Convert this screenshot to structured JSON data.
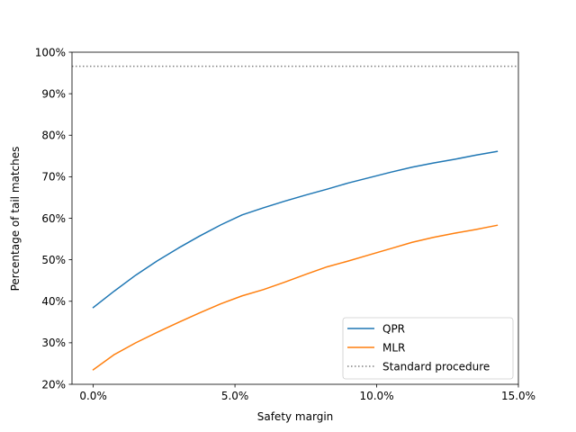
{
  "chart_data": {
    "type": "line",
    "title": "",
    "xlabel": "Safety margin",
    "ylabel": "Percentage of tail matches",
    "xlim": [
      -0.0075,
      0.15
    ],
    "ylim": [
      0.2,
      1.0
    ],
    "x_ticks": [
      {
        "value": 0.0,
        "label": "0.0%"
      },
      {
        "value": 0.05,
        "label": "5.0%"
      },
      {
        "value": 0.1,
        "label": "10.0%"
      },
      {
        "value": 0.15,
        "label": "15.0%"
      }
    ],
    "y_ticks": [
      {
        "value": 0.2,
        "label": "20%"
      },
      {
        "value": 0.3,
        "label": "30%"
      },
      {
        "value": 0.4,
        "label": "40%"
      },
      {
        "value": 0.5,
        "label": "50%"
      },
      {
        "value": 0.6,
        "label": "60%"
      },
      {
        "value": 0.7,
        "label": "70%"
      },
      {
        "value": 0.8,
        "label": "80%"
      },
      {
        "value": 0.9,
        "label": "90%"
      },
      {
        "value": 1.0,
        "label": "100%"
      }
    ],
    "grid": false,
    "legend_position": "bottom-right",
    "series": [
      {
        "name": "QPR",
        "color": "#1f77b4",
        "x": [
          0.0,
          0.0075,
          0.015,
          0.0225,
          0.03,
          0.0375,
          0.045,
          0.0525,
          0.06,
          0.0675,
          0.075,
          0.0825,
          0.09,
          0.0975,
          0.105,
          0.1125,
          0.12,
          0.1275,
          0.135,
          0.1425
        ],
        "y": [
          0.385,
          0.425,
          0.463,
          0.497,
          0.528,
          0.557,
          0.584,
          0.608,
          0.625,
          0.641,
          0.656,
          0.67,
          0.685,
          0.698,
          0.711,
          0.723,
          0.733,
          0.742,
          0.752,
          0.761
        ]
      },
      {
        "name": "MLR",
        "color": "#ff7f0e",
        "x": [
          0.0,
          0.0075,
          0.015,
          0.0225,
          0.03,
          0.0375,
          0.045,
          0.0525,
          0.06,
          0.0675,
          0.075,
          0.0825,
          0.09,
          0.0975,
          0.105,
          0.1125,
          0.12,
          0.1275,
          0.135,
          0.1425
        ],
        "y": [
          0.235,
          0.272,
          0.3,
          0.325,
          0.349,
          0.372,
          0.394,
          0.413,
          0.428,
          0.446,
          0.465,
          0.483,
          0.497,
          0.512,
          0.527,
          0.542,
          0.554,
          0.564,
          0.573,
          0.583
        ]
      }
    ],
    "reference_lines": [
      {
        "name": "Standard procedure",
        "orientation": "horizontal",
        "y": 0.966,
        "color": "#808080",
        "style": "dotted"
      }
    ]
  }
}
